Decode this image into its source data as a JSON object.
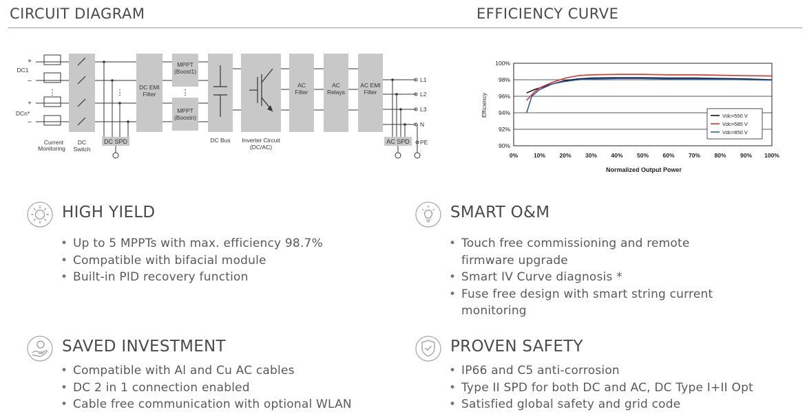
{
  "sections": {
    "circuit_title": "CIRCUIT DIAGRAM",
    "efficiency_title": "EFFICIENCY CURVE"
  },
  "circuit": {
    "dc1": "DC1",
    "dcn": "DCn*",
    "plus": "+",
    "minus": "–",
    "dots": "⋮",
    "current_monitoring": [
      "Current",
      "Monitoring"
    ],
    "dc_switch": [
      "DC",
      "Switch"
    ],
    "dc_spd": "DC SPD",
    "dc_emi_filter": [
      "DC EMI",
      "Filter"
    ],
    "mppt1": [
      "MPPT",
      "(Boost1)"
    ],
    "mpptn": [
      "MPPT",
      "(Boostn)"
    ],
    "dc_bus": "DC Bus",
    "inverter": [
      "Inverter Circuit",
      "(DC/AC)"
    ],
    "ac_filter": [
      "AC",
      "Filter"
    ],
    "ac_relays": [
      "AC",
      "Relays"
    ],
    "ac_emi_filter": [
      "AC EMI",
      "Filter"
    ],
    "ac_spd": "AC SPD",
    "outputs": [
      "L1",
      "L2",
      "L3",
      "N",
      "PE"
    ]
  },
  "chart_data": {
    "type": "line",
    "title": "",
    "xlabel": "Normalized Output Power",
    "ylabel": "Efficiency",
    "xlim": [
      0,
      100
    ],
    "ylim": [
      90,
      100
    ],
    "x_ticks": [
      "0%",
      "10%",
      "20%",
      "30%",
      "40%",
      "50%",
      "60%",
      "70%",
      "80%",
      "90%",
      "100%"
    ],
    "y_ticks": [
      "90%",
      "92%",
      "94%",
      "96%",
      "98%",
      "100%"
    ],
    "grid": "horizontal",
    "legend_position": "bottom-right",
    "series": [
      {
        "name": "Vdc=550 V",
        "color": "#111111",
        "x": [
          5,
          8,
          10,
          15,
          20,
          25,
          30,
          40,
          50,
          60,
          70,
          80,
          90,
          100
        ],
        "y": [
          96.4,
          96.8,
          97.0,
          97.5,
          97.9,
          98.1,
          98.2,
          98.25,
          98.25,
          98.2,
          98.2,
          98.15,
          98.1,
          98.0
        ]
      },
      {
        "name": "Vdc=585 V",
        "color": "#d9302a",
        "x": [
          5,
          8,
          10,
          15,
          20,
          25,
          30,
          40,
          50,
          60,
          70,
          80,
          90,
          100
        ],
        "y": [
          95.5,
          96.5,
          97.0,
          97.7,
          98.2,
          98.5,
          98.6,
          98.65,
          98.65,
          98.6,
          98.6,
          98.55,
          98.5,
          98.45
        ]
      },
      {
        "name": "Vdc=850 V",
        "color": "#2a5fb5",
        "x": [
          5,
          7,
          10,
          15,
          20,
          25,
          30,
          40,
          50,
          60,
          70,
          80,
          90,
          100
        ],
        "y": [
          94.0,
          96.0,
          96.8,
          97.5,
          97.8,
          98.0,
          98.1,
          98.15,
          98.15,
          98.1,
          98.1,
          98.05,
          98.0,
          97.95
        ]
      }
    ]
  },
  "features": [
    {
      "title": "HIGH YIELD",
      "icon": "sun-icon",
      "items": [
        "Up to 5 MPPTs with max. efficiency 98.7%",
        "Compatible with bifacial module",
        "Built-in PID recovery function"
      ]
    },
    {
      "title": "SMART O&M",
      "icon": "lightbulb-icon",
      "items": [
        "Touch free commissioning and remote firmware upgrade",
        "Smart IV Curve diagnosis *",
        "Fuse free design with smart string current monitoring"
      ]
    },
    {
      "title": "SAVED INVESTMENT",
      "icon": "coin-hand-icon",
      "items": [
        "Compatible with Al and Cu AC cables",
        "DC 2 in 1 connection enabled",
        "Cable free communication with optional WLAN"
      ]
    },
    {
      "title": "PROVEN SAFETY",
      "icon": "shield-icon",
      "items": [
        "IP66 and C5 anti-corrosion",
        "Type II SPD for both DC and AC, DC Type I+II Opt",
        "Satisfied global safety and grid code"
      ]
    }
  ],
  "colors": {
    "text": "#555555",
    "block": "#c8c8c8",
    "rule": "#9a9a9a"
  }
}
